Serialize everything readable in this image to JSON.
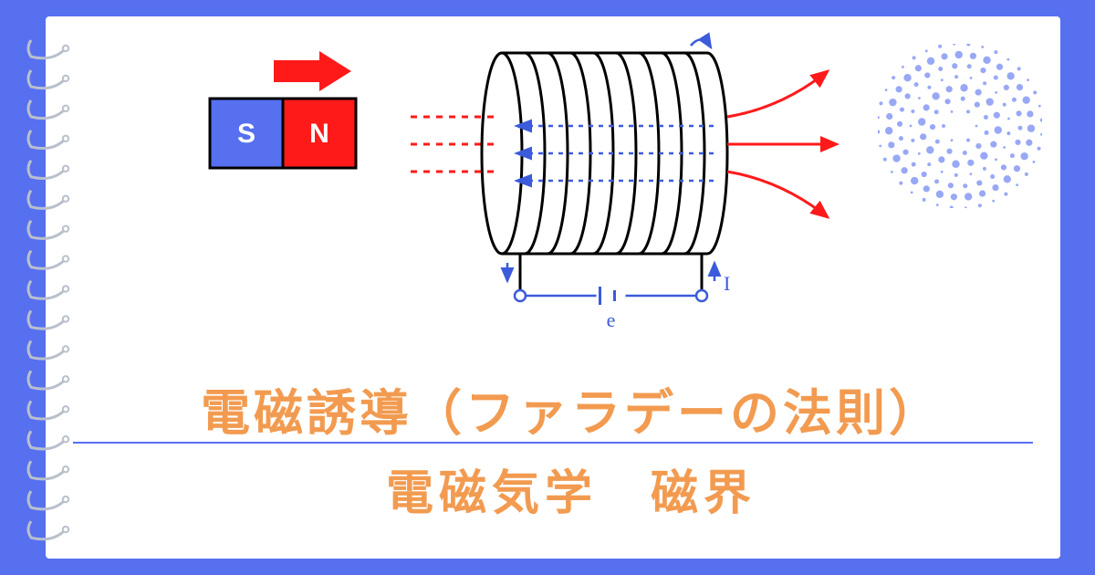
{
  "layout": {
    "page_bg": "#5670f0",
    "card_bg": "#ffffff",
    "spiral_rings": 17,
    "spiral_color": "#b9c0cc",
    "hr_color": "#5670f0"
  },
  "titles": {
    "main": "電磁誘導（ファラデーの法則）",
    "main_color": "#f29b50",
    "sub": "電磁気学　磁界",
    "sub_color": "#f29b50"
  },
  "magnet": {
    "s_label": "S",
    "s_fill": "#5670f0",
    "n_label": "N",
    "n_fill": "#ff1a1a",
    "outline": "#000000",
    "arrow_fill": "#ff1a1a",
    "label_color": "#ffffff"
  },
  "coil": {
    "loops": 10,
    "stroke": "#000000",
    "stroke_width": 3,
    "field_entry_color": "#ff1a1a",
    "field_inside_color": "#3b5bdb",
    "field_lines": 3,
    "circuit_color": "#3b5bdb",
    "e_label": "e",
    "i_label": "I"
  },
  "logo": {
    "dot_color": "#5670f0"
  }
}
